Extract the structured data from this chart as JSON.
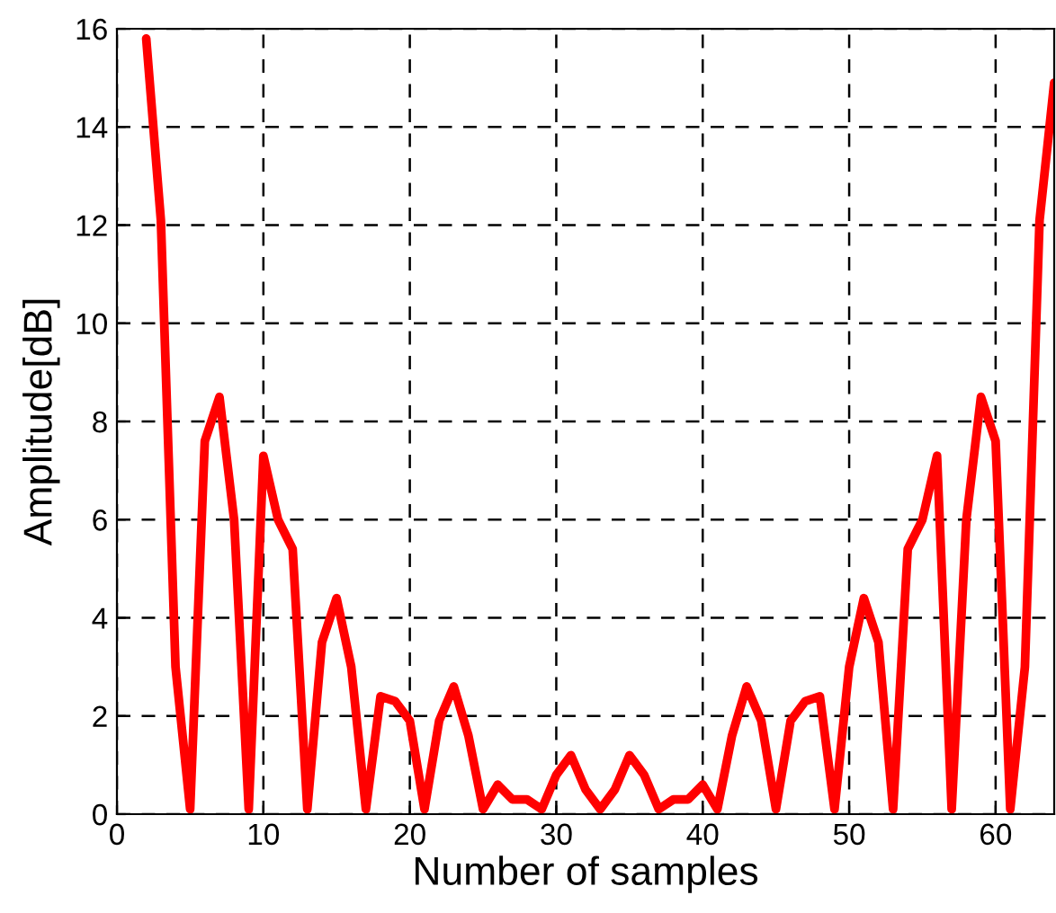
{
  "chart_data": {
    "type": "line",
    "xlabel": "Number of samples",
    "ylabel": "Amplitude[dB]",
    "x": [
      2,
      3,
      4,
      5,
      6,
      7,
      8,
      9,
      10,
      11,
      12,
      13,
      14,
      15,
      16,
      17,
      18,
      19,
      20,
      21,
      22,
      23,
      24,
      25,
      26,
      27,
      28,
      29,
      30,
      31,
      32,
      33,
      34,
      35,
      36,
      37,
      38,
      39,
      40,
      41,
      42,
      43,
      44,
      45,
      46,
      47,
      48,
      49,
      50,
      51,
      52,
      53,
      54,
      55,
      56,
      57,
      58,
      59,
      60,
      61,
      62,
      63,
      64
    ],
    "series": [
      {
        "color": "#ff0000",
        "values": [
          15.8,
          12.1,
          3.0,
          0.1,
          7.6,
          8.5,
          6.0,
          0.1,
          7.3,
          6.0,
          5.4,
          0.1,
          3.5,
          4.4,
          3.0,
          0.1,
          2.4,
          2.3,
          1.9,
          0.1,
          1.9,
          2.6,
          1.6,
          0.1,
          0.6,
          0.3,
          0.3,
          0.1,
          0.8,
          1.2,
          0.5,
          0.1,
          0.5,
          1.2,
          0.8,
          0.1,
          0.3,
          0.3,
          0.6,
          0.1,
          1.6,
          2.6,
          1.9,
          0.1,
          1.9,
          2.3,
          2.4,
          0.1,
          3.0,
          4.4,
          3.5,
          0.1,
          5.4,
          6.0,
          7.3,
          0.1,
          6.0,
          8.5,
          7.6,
          0.1,
          3.0,
          12.1,
          14.9
        ]
      }
    ],
    "xlim": [
      0,
      64
    ],
    "ylim": [
      0,
      16
    ],
    "xticks": [
      0,
      10,
      20,
      30,
      40,
      50,
      60
    ],
    "yticks": [
      0,
      2,
      4,
      6,
      8,
      10,
      12,
      14,
      16
    ],
    "grid": true,
    "line_style": "solid",
    "marker": "none",
    "legend": false
  }
}
